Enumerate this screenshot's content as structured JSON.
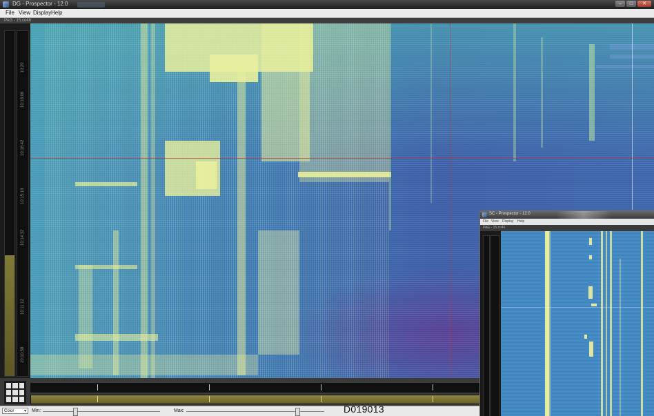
{
  "window": {
    "title": "DG - Prospector - 12.0",
    "controls": {
      "minimize": "–",
      "maximize": "□",
      "close": "✕"
    }
  },
  "menu": {
    "file": "File",
    "view": "View",
    "display": "Display",
    "help": "Help"
  },
  "status_line": "PAG - 15.co46",
  "time_ruler_ticks": [
    "10:20",
    "10:18:06",
    "10:16:42",
    "10:15:18",
    "10:14:32",
    "10:11:12",
    "10:10:58"
  ],
  "controls": {
    "color_select": "Color",
    "min_label": "Min:",
    "max_label": "Max:",
    "min_fraction": 0.08,
    "max_fraction": 0.88
  },
  "caption": "D019013",
  "inset": {
    "title": "SC - Prospector - 12.0",
    "menu": {
      "file": "File",
      "view": "View",
      "display": "Display",
      "help": "Help"
    },
    "status_line": "PAG - 15.co46"
  },
  "colors": {
    "spectrogram_low": "#5b3f94",
    "spectrogram_mid": "#3b78b4",
    "spectrogram_high": "#eef19e",
    "crosshair": "#c0392b",
    "level_fill": "#807a38"
  },
  "icons": {
    "layout_grid": "grid-icon",
    "window": "app-icon"
  }
}
